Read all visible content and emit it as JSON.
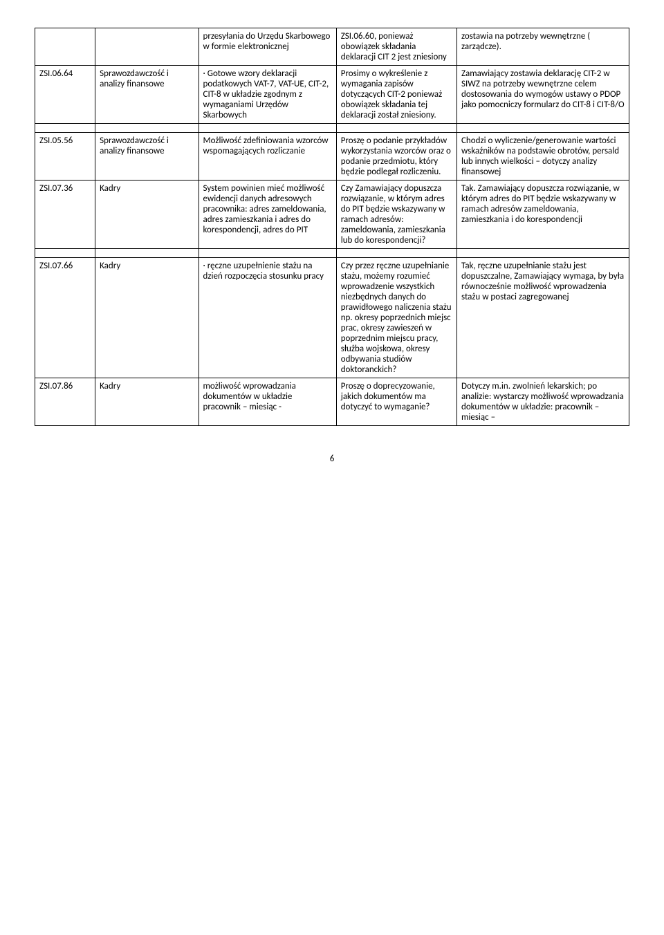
{
  "rows": [
    {
      "c1": "",
      "c2": "",
      "c3": "przesyłania do Urzędu Skarbowego w formie elektronicznej",
      "c4": "ZSI.06.60, ponieważ obowiązek składania deklaracji CIT 2 jest zniesiony",
      "c5": "zostawia na potrzeby wewnętrzne ( zarządcze)."
    },
    {
      "c1": "ZSI.06.64",
      "c2": "Sprawozdawczość i analizy finansowe",
      "c3": "· Gotowe wzory deklaracji podatkowych VAT-7, VAT-UE, CIT-2, CIT-8 w układzie zgodnym z wymaganiami Urzędów Skarbowych",
      "c4": "Prosimy o wykreślenie z wymagania zapisów dotyczących CIT-2 ponieważ obowiązek składania tej deklaracji został zniesiony.",
      "c5": "Zamawiający zostawia deklarację CIT-2 w SIWZ na potrzeby wewnętrzne celem dostosowania do wymogów ustawy o PDOP jako pomocniczy formularz do CIT-8 i  CIT-8/O"
    },
    {
      "c1": "ZSI.05.56",
      "c2": "Sprawozdawczość i analizy finansowe",
      "c3": "Możliwość zdefiniowania wzorców wspomagających rozliczanie",
      "c4": "Proszę o podanie przykładów wykorzystania wzorców oraz o podanie przedmiotu, który będzie podlegał rozliczeniu.",
      "c5": "Chodzi o wyliczenie/generowanie wartości wskaźników na podstawie obrotów, persald lub innych wielkości – dotyczy analizy finansowej"
    },
    {
      "c1": "ZSI.07.36",
      "c2": "Kadry",
      "c3": "System powinien mieć możliwość ewidencji danych adresowych pracownika: adres zameldowania, adres zamieszkania i adres do korespondencji, adres do PIT",
      "c4": "Czy Zamawiający dopuszcza rozwiązanie, w którym adres do PIT będzie wskazywany w ramach adresów: zameldowania, zamieszkania lub do korespondencji?",
      "c5": "Tak. Zamawiający dopuszcza rozwiązanie, w którym adres do PIT będzie wskazywany w ramach adresów zameldowania, zamieszkania i do korespondencji"
    },
    {
      "c1": "ZSI.07.66",
      "c2": "Kadry",
      "c3": "· ręczne uzupełnienie stażu na dzień rozpoczęcia stosunku pracy",
      "c4": "Czy przez ręczne uzupełnianie stażu, możemy rozumieć wprowadzenie wszystkich niezbędnych danych do prawidłowego naliczenia stażu np. okresy poprzednich miejsc prac, okresy zawieszeń w poprzednim miejscu pracy, służba wojskowa, okresy odbywania studiów doktoranckich?",
      "c5": "Tak, ręczne uzupełnianie stażu jest dopuszczalne, Zamawiający wymaga, by była równocześnie możliwość wprowadzenia stażu w postaci zagregowanej"
    },
    {
      "c1": "ZSI.07.86",
      "c2": "Kadry",
      "c3": "możliwość wprowadzania dokumentów w układzie pracownik – miesiąc -",
      "c4": "Proszę o doprecyzowanie, jakich dokumentów ma dotyczyć to wymaganie?",
      "c5": "Dotyczy m.in. zwolnień lekarskich; po analizie: wystarczy możliwość wprowadzania dokumentów w układzie: pracownik – miesiąc –"
    }
  ],
  "pageNumber": "6"
}
